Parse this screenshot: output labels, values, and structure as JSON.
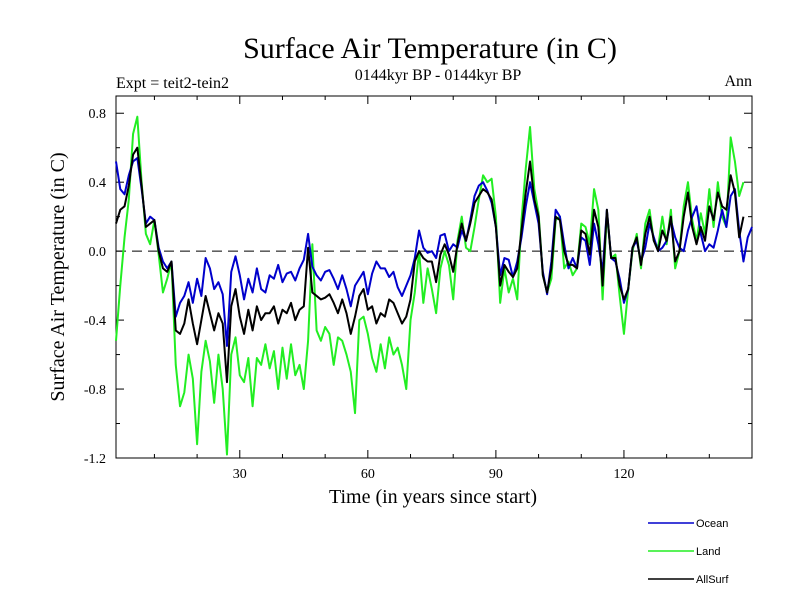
{
  "chart_data": {
    "type": "line",
    "title": "Surface Air Temperature (in C)",
    "subtitle": "0144kyr BP - 0144kyr BP",
    "left_label": "Expt = teit2-tein2",
    "right_label": "Ann",
    "xlabel": "Time (in years since start)",
    "ylabel": "Surface Air Temperature (in C)",
    "xlim": [
      1,
      150
    ],
    "ylim": [
      -1.2,
      0.9
    ],
    "x_ticks": [
      30,
      60,
      90,
      120
    ],
    "y_ticks": [
      -1.2,
      -0.8,
      -0.4,
      0.0,
      0.4,
      0.8
    ],
    "y_tick_labels": [
      "-1.2",
      "-0.8",
      "-0.4",
      "0.0",
      "0.4",
      "0.8"
    ],
    "zero_line": {
      "value": 0.0,
      "style": "dashed"
    },
    "legend_position": "bottom-right",
    "series": [
      {
        "name": "Ocean",
        "color": "#0000cc",
        "values": [
          0.52,
          0.36,
          0.33,
          0.44,
          0.52,
          0.54,
          0.36,
          0.16,
          0.2,
          0.18,
          0.02,
          -0.06,
          -0.1,
          -0.06,
          -0.38,
          -0.3,
          -0.26,
          -0.18,
          -0.3,
          -0.16,
          -0.26,
          -0.04,
          -0.1,
          -0.22,
          -0.18,
          -0.25,
          -0.55,
          -0.12,
          -0.03,
          -0.14,
          -0.28,
          -0.16,
          -0.24,
          -0.1,
          -0.22,
          -0.24,
          -0.14,
          -0.16,
          -0.08,
          -0.18,
          -0.13,
          -0.12,
          -0.17,
          -0.1,
          -0.05,
          0.1,
          -0.09,
          -0.14,
          -0.17,
          -0.12,
          -0.11,
          -0.16,
          -0.22,
          -0.14,
          -0.22,
          -0.32,
          -0.2,
          -0.16,
          -0.12,
          -0.25,
          -0.13,
          -0.06,
          -0.1,
          -0.1,
          -0.15,
          -0.12,
          -0.21,
          -0.26,
          -0.2,
          -0.14,
          -0.04,
          0.12,
          0.02,
          -0.01,
          0.0,
          -0.04,
          0.09,
          0.1,
          0.0,
          0.04,
          0.02,
          0.12,
          0.06,
          0.18,
          0.32,
          0.38,
          0.4,
          0.35,
          0.28,
          0.14,
          -0.14,
          -0.04,
          -0.05,
          -0.15,
          -0.06,
          0.08,
          0.26,
          0.4,
          0.28,
          0.16,
          -0.12,
          -0.25,
          -0.06,
          0.24,
          0.2,
          0.04,
          -0.1,
          -0.04,
          -0.1,
          0.08,
          0.06,
          -0.08,
          0.16,
          0.04,
          -0.12,
          0.24,
          -0.04,
          -0.06,
          -0.16,
          -0.3,
          -0.22,
          0.02,
          0.06,
          -0.06,
          0.02,
          0.16,
          0.08,
          0.0,
          0.02,
          0.06,
          0.18,
          0.08,
          0.02,
          0.0,
          0.12,
          0.2,
          0.26,
          0.1,
          0.0,
          0.04,
          0.02,
          0.12,
          0.24,
          0.14,
          0.32,
          0.36,
          0.12,
          -0.06,
          0.08,
          0.14
        ]
      },
      {
        "name": "Land",
        "color": "#22ee22",
        "values": [
          -0.52,
          -0.2,
          0.08,
          0.3,
          0.68,
          0.78,
          0.4,
          0.1,
          0.04,
          0.18,
          -0.02,
          -0.24,
          -0.16,
          -0.06,
          -0.66,
          -0.9,
          -0.82,
          -0.6,
          -0.74,
          -1.12,
          -0.7,
          -0.52,
          -0.64,
          -0.88,
          -0.6,
          -0.8,
          -1.18,
          -0.6,
          -0.5,
          -0.72,
          -0.76,
          -0.62,
          -0.9,
          -0.62,
          -0.66,
          -0.54,
          -0.68,
          -0.58,
          -0.8,
          -0.56,
          -0.74,
          -0.54,
          -0.72,
          -0.66,
          -0.8,
          -0.52,
          0.04,
          -0.46,
          -0.52,
          -0.44,
          -0.48,
          -0.66,
          -0.5,
          -0.52,
          -0.6,
          -0.7,
          -0.94,
          -0.4,
          -0.38,
          -0.48,
          -0.62,
          -0.7,
          -0.54,
          -0.68,
          -0.5,
          -0.6,
          -0.56,
          -0.66,
          -0.8,
          -0.4,
          -0.24,
          0.0,
          -0.3,
          -0.1,
          -0.22,
          -0.36,
          -0.1,
          0.0,
          -0.08,
          -0.28,
          0.06,
          0.2,
          0.02,
          0.0,
          0.14,
          0.3,
          0.44,
          0.4,
          0.42,
          0.2,
          -0.3,
          -0.1,
          -0.24,
          -0.16,
          -0.28,
          0.18,
          0.48,
          0.72,
          0.36,
          0.22,
          -0.14,
          -0.24,
          -0.16,
          0.18,
          0.2,
          -0.1,
          -0.06,
          -0.14,
          -0.1,
          0.16,
          0.14,
          0.04,
          0.36,
          0.24,
          -0.28,
          0.22,
          -0.04,
          -0.02,
          -0.26,
          -0.48,
          -0.22,
          0.0,
          0.1,
          -0.1,
          0.16,
          0.24,
          0.06,
          0.02,
          0.2,
          0.04,
          0.24,
          -0.1,
          0.0,
          0.26,
          0.4,
          0.18,
          0.06,
          0.22,
          0.1,
          0.36,
          0.14,
          0.4,
          0.2,
          0.14,
          0.66,
          0.52,
          0.32,
          0.4
        ]
      },
      {
        "name": "AllSurf",
        "color": "#000000",
        "values": [
          0.16,
          0.24,
          0.26,
          0.38,
          0.56,
          0.6,
          0.38,
          0.14,
          0.16,
          0.18,
          0.0,
          -0.1,
          -0.12,
          -0.06,
          -0.46,
          -0.48,
          -0.42,
          -0.28,
          -0.42,
          -0.54,
          -0.4,
          -0.26,
          -0.36,
          -0.46,
          -0.36,
          -0.42,
          -0.76,
          -0.32,
          -0.22,
          -0.38,
          -0.48,
          -0.34,
          -0.46,
          -0.32,
          -0.4,
          -0.36,
          -0.36,
          -0.32,
          -0.42,
          -0.34,
          -0.36,
          -0.3,
          -0.4,
          -0.34,
          -0.32,
          0.02,
          -0.24,
          -0.26,
          -0.28,
          -0.27,
          -0.25,
          -0.3,
          -0.36,
          -0.28,
          -0.36,
          -0.48,
          -0.38,
          -0.26,
          -0.22,
          -0.34,
          -0.32,
          -0.42,
          -0.36,
          -0.38,
          -0.28,
          -0.3,
          -0.36,
          -0.42,
          -0.38,
          -0.28,
          -0.06,
          0.0,
          -0.04,
          -0.06,
          -0.06,
          -0.18,
          -0.02,
          0.04,
          -0.02,
          -0.12,
          0.04,
          0.16,
          0.06,
          0.16,
          0.28,
          0.32,
          0.36,
          0.34,
          0.3,
          0.14,
          -0.2,
          -0.08,
          -0.12,
          -0.15,
          -0.1,
          0.12,
          0.34,
          0.52,
          0.3,
          0.2,
          -0.14,
          -0.24,
          -0.1,
          0.2,
          0.18,
          0.0,
          -0.08,
          -0.08,
          -0.1,
          0.12,
          0.1,
          -0.02,
          0.24,
          0.14,
          -0.2,
          0.24,
          -0.04,
          -0.04,
          -0.2,
          -0.28,
          -0.22,
          0.02,
          0.08,
          -0.08,
          0.1,
          0.2,
          0.06,
          0.0,
          0.12,
          0.06,
          0.2,
          -0.06,
          0.0,
          0.2,
          0.34,
          0.14,
          0.04,
          0.14,
          0.06,
          0.26,
          0.18,
          0.34,
          0.26,
          0.24,
          0.44,
          0.34,
          0.08,
          0.2
        ]
      }
    ]
  }
}
